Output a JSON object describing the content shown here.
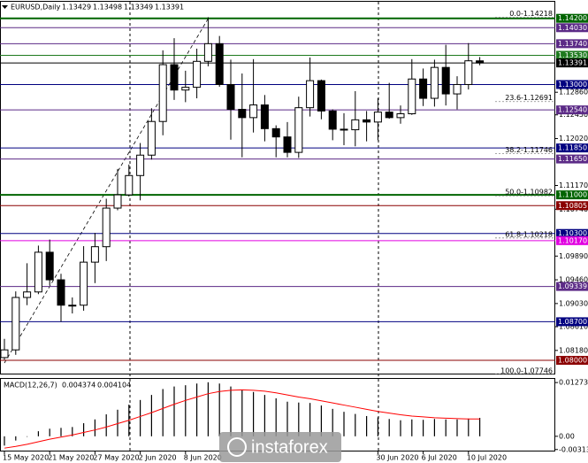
{
  "chart_data": {
    "type": "candlestick",
    "title": "EURUSD,Daily",
    "categories": [
      "15 May 2020",
      null,
      null,
      null,
      "21 May 2020",
      null,
      null,
      null,
      "27 May 2020",
      null,
      null,
      null,
      "2 Jun 2020",
      null,
      null,
      null,
      "8 Jun 2020",
      null,
      null,
      null,
      null,
      null,
      null,
      null,
      null,
      null,
      null,
      null,
      null,
      null,
      null,
      null,
      null,
      "30 Jun 2020",
      null,
      null,
      null,
      "6 Jul 2020",
      null,
      null,
      null,
      "10 Jul 2020",
      null
    ],
    "open": [
      1.0805,
      1.0819,
      1.0914,
      1.0924,
      1.0996,
      1.0946,
      1.09,
      1.09,
      1.0978,
      1.1006,
      1.1076,
      1.11,
      1.1135,
      1.1172,
      1.1233,
      1.1336,
      1.129,
      1.1295,
      1.1342,
      1.1374,
      1.13,
      1.1255,
      1.124,
      1.1263,
      1.122,
      1.1205,
      1.1177,
      1.1258,
      1.1307,
      1.1252,
      1.1219,
      1.1218,
      1.1236,
      1.1232,
      1.125,
      1.124,
      1.1247,
      1.131,
      1.1275,
      1.1331,
      1.1283,
      1.13,
      1.13429
    ],
    "high": [
      1.0839,
      1.0925,
      1.0976,
      1.1008,
      1.1019,
      1.0957,
      1.0914,
      1.1007,
      1.1031,
      1.1093,
      1.1147,
      1.1155,
      1.1194,
      1.1257,
      1.1362,
      1.1384,
      1.1325,
      1.1365,
      1.1422,
      1.1388,
      1.1345,
      1.132,
      1.1346,
      1.1281,
      1.1226,
      1.1232,
      1.1278,
      1.1349,
      1.1309,
      1.1255,
      1.1248,
      1.1288,
      1.1252,
      1.1275,
      1.1303,
      1.1262,
      1.1346,
      1.1329,
      1.1345,
      1.1372,
      1.1315,
      1.1375,
      1.13498
    ],
    "low": [
      1.0801,
      1.081,
      1.09,
      1.092,
      1.0936,
      1.087,
      1.0885,
      1.089,
      1.094,
      1.098,
      1.1072,
      1.1097,
      1.109,
      1.1164,
      1.1208,
      1.1272,
      1.1268,
      1.1275,
      1.1333,
      1.1296,
      1.12,
      1.1168,
      1.1213,
      1.1197,
      1.1168,
      1.1168,
      1.1167,
      1.1242,
      1.1237,
      1.1199,
      1.119,
      1.1188,
      1.1197,
      1.1199,
      1.1238,
      1.1229,
      1.1245,
      1.1261,
      1.126,
      1.1262,
      1.1255,
      1.1291,
      1.13349
    ],
    "close": [
      1.0819,
      1.0914,
      1.0924,
      1.0996,
      1.0946,
      1.09,
      1.09,
      1.0978,
      1.1006,
      1.1076,
      1.11,
      1.1135,
      1.1172,
      1.1233,
      1.1336,
      1.129,
      1.1295,
      1.1342,
      1.1374,
      1.13,
      1.1255,
      1.124,
      1.1263,
      1.122,
      1.1205,
      1.1177,
      1.1258,
      1.1307,
      1.1252,
      1.1219,
      1.1218,
      1.1236,
      1.1232,
      1.125,
      1.124,
      1.1247,
      1.131,
      1.1275,
      1.1331,
      1.1283,
      1.13,
      1.1343,
      1.13391
    ],
    "up_color": "#ffffff",
    "down_color": "#000000",
    "ylim": [
      1.0776,
      1.145
    ],
    "yticks": [
      {
        "value": 1.1286,
        "label": "1.12860"
      },
      {
        "value": 1.1245,
        "label": "1.12450"
      },
      {
        "value": 1.1202,
        "label": "1.12020"
      },
      {
        "value": 1.1117,
        "label": "1.11170"
      },
      {
        "value": 1.1074,
        "label": "1.10740"
      },
      {
        "value": 1.0989,
        "label": "1.09890"
      },
      {
        "value": 1.0946,
        "label": "1.09460"
      },
      {
        "value": 1.0903,
        "label": "1.09030"
      },
      {
        "value": 1.0861,
        "label": "1.08610"
      },
      {
        "value": 1.0818,
        "label": "1.08180"
      }
    ],
    "grid": false,
    "levels": [
      {
        "value": 1.142,
        "label": "1.14200",
        "color": "#006400"
      },
      {
        "value": 1.1403,
        "label": "1.14030",
        "color": "#5b2a86"
      },
      {
        "value": 1.1374,
        "label": "1.13740",
        "color": "#5b2a86"
      },
      {
        "value": 1.1353,
        "label": "1.13530",
        "color": "#1e7a1e"
      },
      {
        "value": 1.13391,
        "color": "#000000"
      },
      {
        "value": 1.13,
        "label": "1.13000",
        "color": "#000080"
      },
      {
        "value": 1.1254,
        "label": "1.12540",
        "color": "#5b2a86"
      },
      {
        "value": 1.1185,
        "label": "1.11850",
        "color": "#000080"
      },
      {
        "value": 1.1165,
        "label": "1.11650",
        "color": "#5b2a86"
      },
      {
        "value": 1.11,
        "label": "1.11000",
        "color": "#006400"
      },
      {
        "value": 1.10805,
        "color": "#8b0000"
      },
      {
        "value": 1.103,
        "label": "1.10300",
        "color": "#000080"
      },
      {
        "value": 1.1017,
        "label": "1.10170",
        "color": "#e000e0"
      },
      {
        "value": 1.09339,
        "color": "#5b2a86"
      },
      {
        "value": 1.087,
        "label": "1.08700",
        "color": "#000080"
      },
      {
        "value": 1.08,
        "label": "1.08000",
        "color": "#8b0000"
      }
    ],
    "fib_levels": [
      {
        "value": 1.14218,
        "label": "0.0-1.14218"
      },
      {
        "value": 1.12691,
        "label": "23.6-1.12691"
      },
      {
        "value": 1.11746,
        "label": "38.2-1.11746"
      },
      {
        "value": 1.10982,
        "label": "50.0-1.10982"
      },
      {
        "value": 1.10218,
        "label": "61.8-1.10218"
      },
      {
        "value": 1.07746,
        "label": "100.0-1.07746"
      }
    ],
    "macd": {
      "label": "MACD(12,26,7)",
      "histogram": [
        -0.0022,
        -0.001,
        0.0,
        0.0012,
        0.0018,
        0.002,
        0.0022,
        0.0031,
        0.004,
        0.0052,
        0.0063,
        0.0075,
        0.0086,
        0.0098,
        0.0112,
        0.0118,
        0.0121,
        0.0125,
        0.0128,
        0.0125,
        0.0118,
        0.011,
        0.0105,
        0.0098,
        0.009,
        0.0082,
        0.008,
        0.0079,
        0.0073,
        0.0065,
        0.0058,
        0.0053,
        0.0048,
        0.0045,
        0.0041,
        0.0038,
        0.004,
        0.0039,
        0.0041,
        0.004,
        0.004,
        0.0042,
        0.004374
      ],
      "signal": [
        -0.0028,
        -0.0024,
        -0.0019,
        -0.0013,
        -0.0007,
        -0.0002,
        0.0003,
        0.0009,
        0.0015,
        0.0022,
        0.003,
        0.0038,
        0.0047,
        0.0056,
        0.0066,
        0.0076,
        0.0085,
        0.0093,
        0.0101,
        0.0106,
        0.0109,
        0.011,
        0.0109,
        0.0107,
        0.0103,
        0.0098,
        0.0093,
        0.0089,
        0.0084,
        0.0079,
        0.0074,
        0.0069,
        0.0064,
        0.0059,
        0.0055,
        0.0051,
        0.0048,
        0.0046,
        0.0044,
        0.0043,
        0.0042,
        0.0041,
        0.004104
      ],
      "histogram_color": "#000000",
      "signal_color": "#ff0000",
      "ylim": [
        -0.0036,
        0.0136
      ],
      "yticks": [
        0.012734,
        {
          "value": 0,
          "label": "0.00"
        },
        -0.003133
      ]
    },
    "watermark": "instaforex"
  }
}
